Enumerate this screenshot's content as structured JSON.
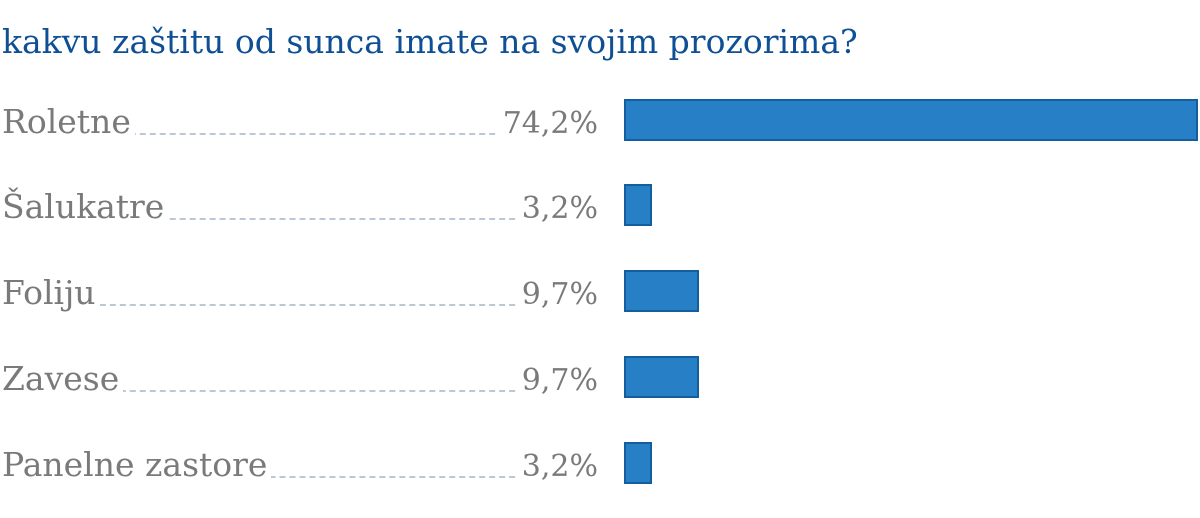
{
  "chart_data": {
    "type": "bar",
    "orientation": "horizontal",
    "title": "kakvu zaštitu od sunca imate na svojim prozorima?",
    "categories": [
      "Roletne",
      "Šalukatre",
      "Foliju",
      "Zavese",
      "Panelne zastore"
    ],
    "values": [
      74.2,
      3.2,
      9.7,
      9.7,
      3.2
    ],
    "value_labels": [
      "74,2%",
      "3,2%",
      "9,7%",
      "9,7%",
      "3,2%"
    ],
    "xlim": [
      0,
      74.2
    ],
    "grid": false,
    "legend": "none",
    "colors": {
      "bar_fill": "#2780c5",
      "bar_border": "#155e9e",
      "title": "#0f4f94",
      "label": "#7a7a7a",
      "leader": "#b9c7d6"
    }
  }
}
